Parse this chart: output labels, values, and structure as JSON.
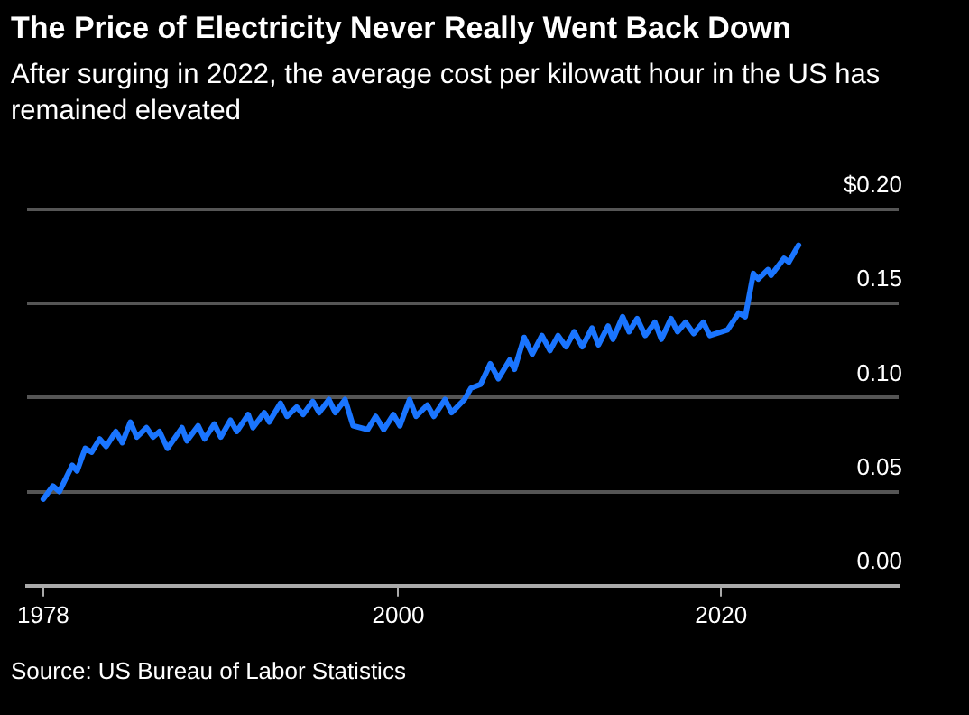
{
  "chart_data": {
    "type": "line",
    "title": "The Price of Electricity Never Really Went Back Down",
    "subtitle": "After surging in 2022, the average cost per kilowatt hour in the US has remained elevated",
    "annotations": [
      "Source: US Bureau of Labor Statistics"
    ],
    "x": [
      1978.0,
      1978.6,
      1979.0,
      1979.8,
      1980.1,
      1980.6,
      1981.0,
      1981.5,
      1981.9,
      1982.5,
      1982.9,
      1983.4,
      1983.8,
      1984.4,
      1984.8,
      1985.2,
      1985.7,
      1986.6,
      1986.9,
      1987.6,
      1988.0,
      1988.6,
      1989.0,
      1989.6,
      1990.0,
      1990.7,
      1991.0,
      1991.7,
      1992.0,
      1992.7,
      1993.1,
      1993.7,
      1994.1,
      1994.7,
      1995.1,
      1995.7,
      1996.1,
      1996.7,
      1997.2,
      1998.1,
      1998.6,
      1999.1,
      1999.7,
      2000.1,
      2000.7,
      2001.1,
      2001.8,
      2002.2,
      2002.9,
      2003.3,
      2004.1,
      2004.5,
      2005.1,
      2005.7,
      2006.2,
      2006.9,
      2007.2,
      2007.8,
      2008.3,
      2008.9,
      2009.4,
      2009.9,
      2010.4,
      2010.9,
      2011.4,
      2012.0,
      2012.4,
      2013.0,
      2013.3,
      2013.9,
      2014.3,
      2014.8,
      2015.3,
      2015.9,
      2016.3,
      2016.9,
      2017.3,
      2017.8,
      2018.3,
      2018.9,
      2019.3,
      2020.4,
      2021.1,
      2021.5,
      2022.0,
      2022.3,
      2022.9,
      2023.1,
      2023.9,
      2024.2,
      2024.8
    ],
    "series": [
      {
        "color": "#1a75ff",
        "values": [
          0.046,
          0.053,
          0.05,
          0.064,
          0.061,
          0.073,
          0.071,
          0.078,
          0.074,
          0.082,
          0.076,
          0.087,
          0.079,
          0.084,
          0.079,
          0.082,
          0.073,
          0.084,
          0.077,
          0.085,
          0.078,
          0.086,
          0.079,
          0.088,
          0.082,
          0.091,
          0.084,
          0.092,
          0.087,
          0.097,
          0.09,
          0.095,
          0.091,
          0.098,
          0.092,
          0.099,
          0.092,
          0.099,
          0.085,
          0.083,
          0.09,
          0.083,
          0.091,
          0.085,
          0.099,
          0.09,
          0.096,
          0.09,
          0.099,
          0.092,
          0.099,
          0.105,
          0.107,
          0.118,
          0.11,
          0.12,
          0.115,
          0.132,
          0.123,
          0.133,
          0.125,
          0.133,
          0.127,
          0.135,
          0.127,
          0.137,
          0.128,
          0.138,
          0.131,
          0.143,
          0.135,
          0.142,
          0.133,
          0.14,
          0.131,
          0.142,
          0.135,
          0.14,
          0.134,
          0.14,
          0.133,
          0.136,
          0.145,
          0.143,
          0.166,
          0.163,
          0.168,
          0.165,
          0.174,
          0.172,
          0.181
        ]
      }
    ],
    "xlim": [
      1977,
      2031
    ],
    "xticks": [
      1978,
      2000,
      2020
    ],
    "ylim": [
      0,
      0.2
    ],
    "yticks": [
      {
        "value": 0,
        "label": "0.00"
      },
      {
        "value": 0.05,
        "label": "0.05"
      },
      {
        "value": 0.1,
        "label": "0.10"
      },
      {
        "value": 0.15,
        "label": "0.15"
      },
      {
        "value": 0.2,
        "label": "$0.20"
      }
    ],
    "grid": "y",
    "legend": false,
    "marker": "none",
    "line_style": "solid"
  }
}
